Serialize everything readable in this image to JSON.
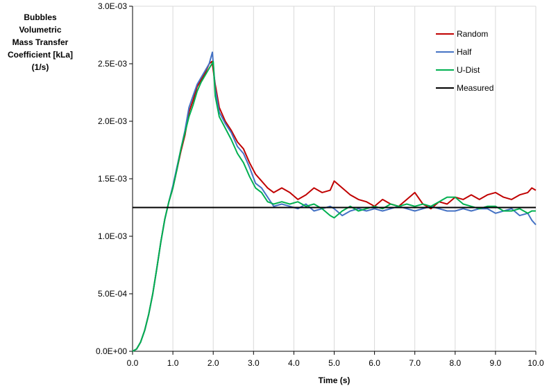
{
  "chart_data": {
    "type": "line",
    "ylabel_lines": [
      "Bubbles",
      "Volumetric",
      "Mass Transfer",
      "Coefficient [kLa]",
      "(1/s)"
    ],
    "xlabel": "Time (s)",
    "xlim": [
      0,
      10
    ],
    "ylim": [
      0,
      0.003
    ],
    "x_ticks": [
      "0.0",
      "1.0",
      "2.0",
      "3.0",
      "4.0",
      "5.0",
      "6.0",
      "7.0",
      "8.0",
      "9.0",
      "10.0"
    ],
    "y_ticks": [
      "0.0E+00",
      "5.0E-04",
      "1.0E-03",
      "1.5E-03",
      "2.0E-03",
      "2.5E-03",
      "3.0E-03"
    ],
    "grid": "vertical",
    "legend_position": "top-right",
    "series": [
      {
        "name": "Random",
        "color": "#c00000",
        "points": [
          [
            0,
            0
          ],
          [
            0.1,
            2e-05
          ],
          [
            0.2,
            8e-05
          ],
          [
            0.3,
            0.00018
          ],
          [
            0.4,
            0.00032
          ],
          [
            0.5,
            0.0005
          ],
          [
            0.6,
            0.00072
          ],
          [
            0.7,
            0.00095
          ],
          [
            0.8,
            0.00115
          ],
          [
            0.9,
            0.0013
          ],
          [
            1.0,
            0.00142
          ],
          [
            1.1,
            0.00158
          ],
          [
            1.2,
            0.00174
          ],
          [
            1.3,
            0.00188
          ],
          [
            1.4,
            0.00208
          ],
          [
            1.5,
            0.00218
          ],
          [
            1.6,
            0.0023
          ],
          [
            1.7,
            0.00236
          ],
          [
            1.8,
            0.00242
          ],
          [
            1.9,
            0.0025
          ],
          [
            1.97,
            0.00252
          ],
          [
            2.05,
            0.00232
          ],
          [
            2.15,
            0.00212
          ],
          [
            2.3,
            0.002
          ],
          [
            2.45,
            0.00192
          ],
          [
            2.6,
            0.00182
          ],
          [
            2.75,
            0.00176
          ],
          [
            2.9,
            0.00164
          ],
          [
            3.05,
            0.00154
          ],
          [
            3.2,
            0.00148
          ],
          [
            3.35,
            0.00142
          ],
          [
            3.5,
            0.00138
          ],
          [
            3.7,
            0.00142
          ],
          [
            3.9,
            0.00138
          ],
          [
            4.1,
            0.00132
          ],
          [
            4.3,
            0.00136
          ],
          [
            4.5,
            0.00142
          ],
          [
            4.7,
            0.00138
          ],
          [
            4.9,
            0.0014
          ],
          [
            5.0,
            0.00148
          ],
          [
            5.2,
            0.00142
          ],
          [
            5.4,
            0.00136
          ],
          [
            5.6,
            0.00132
          ],
          [
            5.8,
            0.0013
          ],
          [
            6.0,
            0.00126
          ],
          [
            6.2,
            0.00132
          ],
          [
            6.4,
            0.00128
          ],
          [
            6.6,
            0.00126
          ],
          [
            6.8,
            0.00132
          ],
          [
            7.0,
            0.00138
          ],
          [
            7.2,
            0.00128
          ],
          [
            7.4,
            0.00124
          ],
          [
            7.6,
            0.0013
          ],
          [
            7.8,
            0.00128
          ],
          [
            8.0,
            0.00134
          ],
          [
            8.2,
            0.00132
          ],
          [
            8.4,
            0.00136
          ],
          [
            8.6,
            0.00132
          ],
          [
            8.8,
            0.00136
          ],
          [
            9.0,
            0.00138
          ],
          [
            9.2,
            0.00134
          ],
          [
            9.4,
            0.00132
          ],
          [
            9.6,
            0.00136
          ],
          [
            9.8,
            0.00138
          ],
          [
            9.9,
            0.00142
          ],
          [
            10.0,
            0.0014
          ]
        ]
      },
      {
        "name": "Half",
        "color": "#4472c4",
        "points": [
          [
            0,
            0
          ],
          [
            0.1,
            2e-05
          ],
          [
            0.2,
            8e-05
          ],
          [
            0.3,
            0.00018
          ],
          [
            0.4,
            0.00032
          ],
          [
            0.5,
            0.0005
          ],
          [
            0.6,
            0.00072
          ],
          [
            0.7,
            0.00095
          ],
          [
            0.8,
            0.00115
          ],
          [
            0.9,
            0.0013
          ],
          [
            1.0,
            0.00144
          ],
          [
            1.1,
            0.0016
          ],
          [
            1.2,
            0.00176
          ],
          [
            1.3,
            0.00192
          ],
          [
            1.4,
            0.00212
          ],
          [
            1.5,
            0.00222
          ],
          [
            1.6,
            0.00232
          ],
          [
            1.7,
            0.00238
          ],
          [
            1.8,
            0.00244
          ],
          [
            1.9,
            0.0025
          ],
          [
            1.98,
            0.0026
          ],
          [
            2.05,
            0.00228
          ],
          [
            2.15,
            0.00208
          ],
          [
            2.3,
            0.00198
          ],
          [
            2.45,
            0.0019
          ],
          [
            2.6,
            0.00178
          ],
          [
            2.75,
            0.00172
          ],
          [
            2.9,
            0.0016
          ],
          [
            3.05,
            0.00146
          ],
          [
            3.2,
            0.00142
          ],
          [
            3.35,
            0.00134
          ],
          [
            3.5,
            0.00126
          ],
          [
            3.7,
            0.00128
          ],
          [
            3.9,
            0.00126
          ],
          [
            4.1,
            0.00124
          ],
          [
            4.3,
            0.00128
          ],
          [
            4.5,
            0.00122
          ],
          [
            4.7,
            0.00124
          ],
          [
            4.9,
            0.00126
          ],
          [
            5.0,
            0.00124
          ],
          [
            5.2,
            0.00118
          ],
          [
            5.4,
            0.00122
          ],
          [
            5.6,
            0.00124
          ],
          [
            5.8,
            0.00122
          ],
          [
            6.0,
            0.00124
          ],
          [
            6.2,
            0.00122
          ],
          [
            6.4,
            0.00124
          ],
          [
            6.6,
            0.00126
          ],
          [
            6.8,
            0.00124
          ],
          [
            7.0,
            0.00122
          ],
          [
            7.2,
            0.00124
          ],
          [
            7.4,
            0.00126
          ],
          [
            7.6,
            0.00124
          ],
          [
            7.8,
            0.00122
          ],
          [
            8.0,
            0.00122
          ],
          [
            8.2,
            0.00124
          ],
          [
            8.4,
            0.00122
          ],
          [
            8.6,
            0.00124
          ],
          [
            8.8,
            0.00124
          ],
          [
            9.0,
            0.0012
          ],
          [
            9.2,
            0.00122
          ],
          [
            9.4,
            0.00124
          ],
          [
            9.6,
            0.00118
          ],
          [
            9.8,
            0.0012
          ],
          [
            9.9,
            0.00114
          ],
          [
            10.0,
            0.0011
          ]
        ]
      },
      {
        "name": "U-Dist",
        "color": "#00b050",
        "points": [
          [
            0,
            0
          ],
          [
            0.1,
            2e-05
          ],
          [
            0.2,
            8e-05
          ],
          [
            0.3,
            0.00018
          ],
          [
            0.4,
            0.00032
          ],
          [
            0.5,
            0.0005
          ],
          [
            0.6,
            0.00072
          ],
          [
            0.7,
            0.00095
          ],
          [
            0.8,
            0.00115
          ],
          [
            0.9,
            0.0013
          ],
          [
            1.0,
            0.00142
          ],
          [
            1.1,
            0.00158
          ],
          [
            1.2,
            0.00176
          ],
          [
            1.3,
            0.0019
          ],
          [
            1.4,
            0.00204
          ],
          [
            1.5,
            0.00214
          ],
          [
            1.6,
            0.00226
          ],
          [
            1.7,
            0.00234
          ],
          [
            1.8,
            0.0024
          ],
          [
            1.9,
            0.00246
          ],
          [
            2.0,
            0.00252
          ],
          [
            2.05,
            0.00222
          ],
          [
            2.15,
            0.00204
          ],
          [
            2.3,
            0.00194
          ],
          [
            2.45,
            0.00184
          ],
          [
            2.6,
            0.00172
          ],
          [
            2.75,
            0.00164
          ],
          [
            2.9,
            0.00152
          ],
          [
            3.05,
            0.00142
          ],
          [
            3.2,
            0.00138
          ],
          [
            3.35,
            0.0013
          ],
          [
            3.5,
            0.00128
          ],
          [
            3.7,
            0.0013
          ],
          [
            3.9,
            0.00128
          ],
          [
            4.1,
            0.0013
          ],
          [
            4.3,
            0.00126
          ],
          [
            4.5,
            0.00128
          ],
          [
            4.7,
            0.00124
          ],
          [
            4.9,
            0.00118
          ],
          [
            5.0,
            0.00116
          ],
          [
            5.2,
            0.00122
          ],
          [
            5.4,
            0.00126
          ],
          [
            5.6,
            0.00122
          ],
          [
            5.8,
            0.00124
          ],
          [
            6.0,
            0.00126
          ],
          [
            6.2,
            0.00124
          ],
          [
            6.4,
            0.00128
          ],
          [
            6.6,
            0.00126
          ],
          [
            6.8,
            0.00128
          ],
          [
            7.0,
            0.00126
          ],
          [
            7.2,
            0.00128
          ],
          [
            7.4,
            0.00126
          ],
          [
            7.6,
            0.0013
          ],
          [
            7.8,
            0.00134
          ],
          [
            8.0,
            0.00134
          ],
          [
            8.2,
            0.00128
          ],
          [
            8.4,
            0.00126
          ],
          [
            8.6,
            0.00124
          ],
          [
            8.8,
            0.00126
          ],
          [
            9.0,
            0.00126
          ],
          [
            9.2,
            0.00122
          ],
          [
            9.4,
            0.00122
          ],
          [
            9.6,
            0.00124
          ],
          [
            9.8,
            0.0012
          ],
          [
            9.9,
            0.00122
          ],
          [
            10.0,
            0.00122
          ]
        ]
      },
      {
        "name": "Measured",
        "color": "#000000",
        "points": [
          [
            0,
            0.00125
          ],
          [
            10,
            0.00125
          ]
        ]
      }
    ]
  }
}
